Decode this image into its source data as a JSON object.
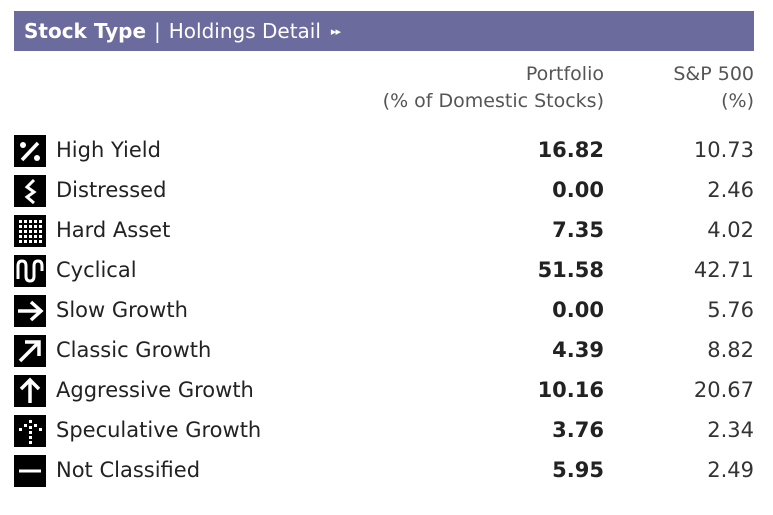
{
  "header": {
    "title": "Stock Type",
    "separator": "|",
    "link": "Holdings Detail",
    "arrow_glyph": "▸▸"
  },
  "columns": {
    "portfolio_line1": "Portfolio",
    "portfolio_line2": "(% of Domestic Stocks)",
    "sp_line1": "S&P 500",
    "sp_line2": "(%)"
  },
  "rows": [
    {
      "label": "High Yield",
      "portfolio": "16.82",
      "sp500": "10.73",
      "icon": "high-yield-icon"
    },
    {
      "label": "Distressed",
      "portfolio": "0.00",
      "sp500": "2.46",
      "icon": "distressed-icon"
    },
    {
      "label": "Hard Asset",
      "portfolio": "7.35",
      "sp500": "4.02",
      "icon": "hard-asset-icon"
    },
    {
      "label": "Cyclical",
      "portfolio": "51.58",
      "sp500": "42.71",
      "icon": "cyclical-icon"
    },
    {
      "label": "Slow Growth",
      "portfolio": "0.00",
      "sp500": "5.76",
      "icon": "slow-growth-icon"
    },
    {
      "label": "Classic Growth",
      "portfolio": "4.39",
      "sp500": "8.82",
      "icon": "classic-growth-icon"
    },
    {
      "label": "Aggressive Growth",
      "portfolio": "10.16",
      "sp500": "20.67",
      "icon": "aggressive-growth-icon"
    },
    {
      "label": "Speculative Growth",
      "portfolio": "3.76",
      "sp500": "2.34",
      "icon": "speculative-growth-icon"
    },
    {
      "label": "Not Classified",
      "portfolio": "5.95",
      "sp500": "2.49",
      "icon": "not-classified-icon"
    }
  ],
  "colors": {
    "header_bg": "#6b6b9e",
    "header_text": "#ffffff",
    "icon_bg": "#000000"
  }
}
